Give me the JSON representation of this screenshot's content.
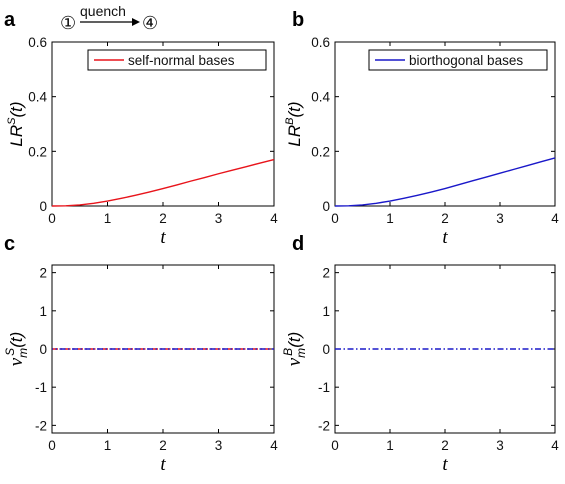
{
  "annotation": {
    "from": "①",
    "label": "quench",
    "to": "④"
  },
  "chart_data": [
    {
      "panel": "a",
      "type": "line",
      "xlabel": "t",
      "ylabel_base": "LR",
      "ylabel_sup": "S",
      "ylabel_arg": "(t)",
      "xlim": [
        0,
        4
      ],
      "ylim": [
        0,
        0.6
      ],
      "xticks": [
        0,
        1,
        2,
        3,
        4
      ],
      "yticks": [
        0,
        0.2,
        0.4,
        0.6
      ],
      "ytick_labels": [
        "0",
        "0.2",
        "0.4",
        "0.6"
      ],
      "legend": {
        "label": "self-normal bases",
        "placement": "top-right"
      },
      "series": [
        {
          "name": "self-normal bases",
          "color": "#e8141b",
          "dash": "solid",
          "x": [
            0,
            0.25,
            0.5,
            0.75,
            1,
            1.25,
            1.5,
            1.75,
            2,
            2.25,
            2.5,
            2.75,
            3,
            3.25,
            3.5,
            3.75,
            4
          ],
          "y": [
            0,
            0.0008,
            0.004,
            0.01,
            0.018,
            0.028,
            0.039,
            0.051,
            0.064,
            0.077,
            0.091,
            0.104,
            0.118,
            0.131,
            0.144,
            0.157,
            0.17
          ]
        }
      ]
    },
    {
      "panel": "b",
      "type": "line",
      "xlabel": "t",
      "ylabel_base": "LR",
      "ylabel_sup": "B",
      "ylabel_arg": "(t)",
      "xlim": [
        0,
        4
      ],
      "ylim": [
        0,
        0.6
      ],
      "xticks": [
        0,
        1,
        2,
        3,
        4
      ],
      "yticks": [
        0,
        0.2,
        0.4,
        0.6
      ],
      "ytick_labels": [
        "0",
        "0.2",
        "0.4",
        "0.6"
      ],
      "legend": {
        "label": "biorthogonal bases",
        "placement": "top-right"
      },
      "series": [
        {
          "name": "biorthogonal bases",
          "color": "#1a18c9",
          "dash": "solid",
          "x": [
            0,
            0.25,
            0.5,
            0.75,
            1,
            1.25,
            1.5,
            1.75,
            2,
            2.25,
            2.5,
            2.75,
            3,
            3.25,
            3.5,
            3.75,
            4
          ],
          "y": [
            0,
            0.0008,
            0.004,
            0.01,
            0.018,
            0.028,
            0.039,
            0.051,
            0.064,
            0.078,
            0.092,
            0.106,
            0.12,
            0.134,
            0.148,
            0.162,
            0.176
          ]
        }
      ]
    },
    {
      "panel": "c",
      "type": "line",
      "xlabel": "t",
      "ylabel_base": "ν",
      "ylabel_sub": "m",
      "ylabel_sup": "S",
      "ylabel_arg": "(t)",
      "xlim": [
        0,
        4
      ],
      "ylim": [
        -2.2,
        2.2
      ],
      "xticks": [
        0,
        1,
        2,
        3,
        4
      ],
      "yticks": [
        -2,
        -1,
        0,
        1,
        2
      ],
      "ytick_labels": [
        "-2",
        "-1",
        "0",
        "1",
        "2"
      ],
      "series": [
        {
          "color": "#e8141b",
          "dash": "dashdot",
          "x": [
            0,
            4
          ],
          "y": [
            0,
            0
          ]
        },
        {
          "color": "#1a18c9",
          "dash": "dashdot-offset",
          "x": [
            0,
            4
          ],
          "y": [
            0,
            0
          ]
        }
      ]
    },
    {
      "panel": "d",
      "type": "line",
      "xlabel": "t",
      "ylabel_base": "ν",
      "ylabel_sub": "m",
      "ylabel_sup": "B",
      "ylabel_arg": "(t)",
      "xlim": [
        0,
        4
      ],
      "ylim": [
        -2.2,
        2.2
      ],
      "xticks": [
        0,
        1,
        2,
        3,
        4
      ],
      "yticks": [
        -2,
        -1,
        0,
        1,
        2
      ],
      "ytick_labels": [
        "-2",
        "-1",
        "0",
        "1",
        "2"
      ],
      "series": [
        {
          "color": "#1a18c9",
          "dash": "dashdot",
          "x": [
            0,
            4
          ],
          "y": [
            0,
            0
          ]
        }
      ]
    }
  ]
}
